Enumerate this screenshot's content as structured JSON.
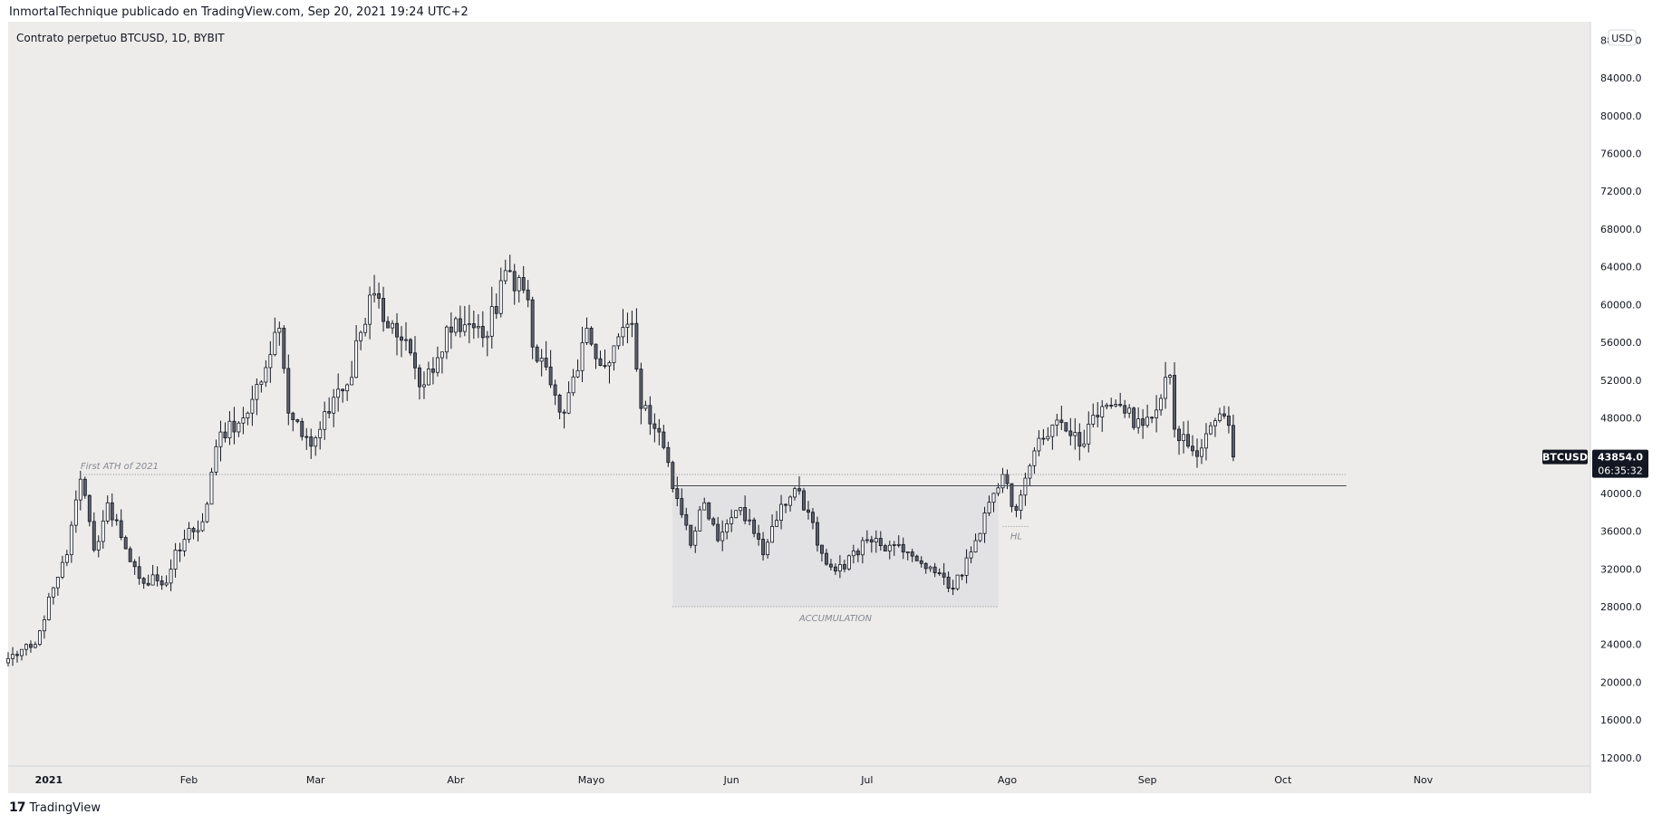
{
  "header": {
    "publisher_line": "InmortalTechnique publicado en TradingView.com, Sep 20, 2021 19:24 UTC+2"
  },
  "footer": {
    "logo_mark": "17",
    "brand": "TradingView"
  },
  "colors": {
    "background": "#edecea",
    "candle_up_fill": "#ffffff",
    "candle_down_fill": "#5d606b",
    "candle_border": "#131722",
    "last_price_label_bg": "#131722",
    "accumulation_zone": "#e2e1e3"
  },
  "chart_data": {
    "type": "candlestick",
    "legend_text": "Contrato perpetuo BTCUSD, 1D, BYBIT",
    "symbol": "BTCUSD",
    "currency": "USD",
    "last_price": "43854.0",
    "countdown": "06:35:32",
    "x_range": [
      "2020-12-23",
      "2021-12-08"
    ],
    "y_range": [
      11500,
      89000
    ],
    "y_ticks": [
      "88000.0",
      "84000.0",
      "80000.0",
      "76000.0",
      "72000.0",
      "68000.0",
      "64000.0",
      "60000.0",
      "56000.0",
      "52000.0",
      "48000.0",
      "44000.0",
      "40000.0",
      "36000.0",
      "32000.0",
      "28000.0",
      "24000.0",
      "20000.0",
      "16000.0",
      "12000.0"
    ],
    "x_ticks": [
      {
        "label": "2021",
        "date": "2021-01-01",
        "bold": true
      },
      {
        "label": "Feb",
        "date": "2021-02-01"
      },
      {
        "label": "Mar",
        "date": "2021-03-01"
      },
      {
        "label": "Abr",
        "date": "2021-04-01"
      },
      {
        "label": "Mayo",
        "date": "2021-05-01"
      },
      {
        "label": "Jun",
        "date": "2021-06-01"
      },
      {
        "label": "Jul",
        "date": "2021-07-01"
      },
      {
        "label": "Ago",
        "date": "2021-08-01"
      },
      {
        "label": "Sep",
        "date": "2021-09-01"
      },
      {
        "label": "Oct",
        "date": "2021-10-01"
      },
      {
        "label": "Nov",
        "date": "2021-11-01"
      }
    ],
    "annotations": [
      {
        "type": "hline",
        "style": "dotted",
        "y": 42000,
        "from": "2021-01-08",
        "to": "2021-10-15",
        "label": "First ATH of 2021",
        "label_at": "2021-01-08"
      },
      {
        "type": "hline",
        "style": "solid",
        "y": 40800,
        "from": "2021-05-19",
        "to": "2021-10-15"
      },
      {
        "type": "box",
        "from": "2021-05-19",
        "to": "2021-07-30",
        "y_min": 28000,
        "y_max": 40600,
        "label": "ACCUMULATION"
      },
      {
        "type": "hline",
        "style": "dotted",
        "y": 28000,
        "from": "2021-05-19",
        "to": "2021-07-30"
      },
      {
        "type": "hline",
        "style": "dotted",
        "y": 36500,
        "from": "2021-07-31",
        "to": "2021-08-06",
        "label": "HL"
      }
    ],
    "anchors": [
      {
        "date": "2020-12-23",
        "close": 22500
      },
      {
        "date": "2020-12-29",
        "close": 24000
      },
      {
        "date": "2021-01-02",
        "close": 30000
      },
      {
        "date": "2021-01-05",
        "close": 33500
      },
      {
        "date": "2021-01-08",
        "close": 41500
      },
      {
        "date": "2021-01-11",
        "close": 34000
      },
      {
        "date": "2021-01-14",
        "close": 39000
      },
      {
        "date": "2021-01-21",
        "close": 31000
      },
      {
        "date": "2021-01-27",
        "close": 30500
      },
      {
        "date": "2021-01-29",
        "close": 34000
      },
      {
        "date": "2021-02-04",
        "close": 37000
      },
      {
        "date": "2021-02-08",
        "close": 46500
      },
      {
        "date": "2021-02-14",
        "close": 48500
      },
      {
        "date": "2021-02-21",
        "close": 57500
      },
      {
        "date": "2021-02-23",
        "close": 48500
      },
      {
        "date": "2021-02-28",
        "close": 45000
      },
      {
        "date": "2021-03-04",
        "close": 48500
      },
      {
        "date": "2021-03-08",
        "close": 51500
      },
      {
        "date": "2021-03-13",
        "close": 61000
      },
      {
        "date": "2021-03-18",
        "close": 58000
      },
      {
        "date": "2021-03-25",
        "close": 51500
      },
      {
        "date": "2021-04-01",
        "close": 58500
      },
      {
        "date": "2021-04-07",
        "close": 56500
      },
      {
        "date": "2021-04-13",
        "close": 63500
      },
      {
        "date": "2021-04-17",
        "close": 60500
      },
      {
        "date": "2021-04-18",
        "close": 55500
      },
      {
        "date": "2021-04-22",
        "close": 51500
      },
      {
        "date": "2021-04-25",
        "close": 48500
      },
      {
        "date": "2021-04-30",
        "close": 57500
      },
      {
        "date": "2021-05-04",
        "close": 53500
      },
      {
        "date": "2021-05-10",
        "close": 58000
      },
      {
        "date": "2021-05-12",
        "close": 49000
      },
      {
        "date": "2021-05-16",
        "close": 46500
      },
      {
        "date": "2021-05-19",
        "close": 40500
      },
      {
        "date": "2021-05-23",
        "close": 34500
      },
      {
        "date": "2021-05-26",
        "close": 39000
      },
      {
        "date": "2021-05-29",
        "close": 35000
      },
      {
        "date": "2021-06-03",
        "close": 38500
      },
      {
        "date": "2021-06-08",
        "close": 33500
      },
      {
        "date": "2021-06-10",
        "close": 36500
      },
      {
        "date": "2021-06-15",
        "close": 40500
      },
      {
        "date": "2021-06-18",
        "close": 38000
      },
      {
        "date": "2021-06-22",
        "close": 32500
      },
      {
        "date": "2021-06-26",
        "close": 32000
      },
      {
        "date": "2021-06-30",
        "close": 35000
      },
      {
        "date": "2021-07-06",
        "close": 34500
      },
      {
        "date": "2021-07-10",
        "close": 33800
      },
      {
        "date": "2021-07-15",
        "close": 32200
      },
      {
        "date": "2021-07-20",
        "close": 29900
      },
      {
        "date": "2021-07-25",
        "close": 35000
      },
      {
        "date": "2021-07-29",
        "close": 40000
      },
      {
        "date": "2021-07-31",
        "close": 42000
      },
      {
        "date": "2021-08-03",
        "close": 38200
      },
      {
        "date": "2021-08-07",
        "close": 44500
      },
      {
        "date": "2021-08-13",
        "close": 47500
      },
      {
        "date": "2021-08-17",
        "close": 45000
      },
      {
        "date": "2021-08-22",
        "close": 49200
      },
      {
        "date": "2021-08-27",
        "close": 48500
      },
      {
        "date": "2021-08-31",
        "close": 47200
      },
      {
        "date": "2021-09-06",
        "close": 52500
      },
      {
        "date": "2021-09-07",
        "close": 46800
      },
      {
        "date": "2021-09-10",
        "close": 45000
      },
      {
        "date": "2021-09-13",
        "close": 44800
      },
      {
        "date": "2021-09-16",
        "close": 47700
      },
      {
        "date": "2021-09-19",
        "close": 47200
      },
      {
        "date": "2021-09-20",
        "close": 43854
      }
    ]
  }
}
